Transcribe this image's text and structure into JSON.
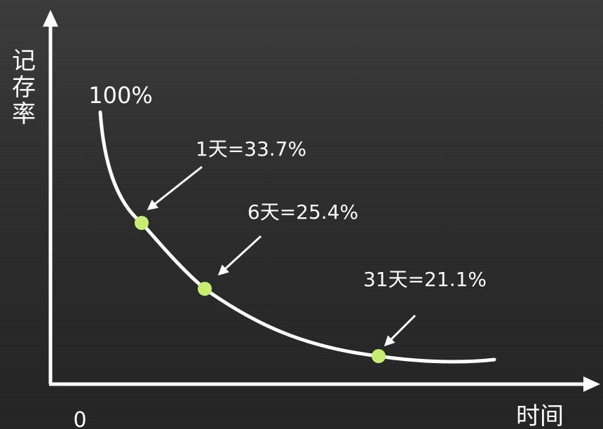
{
  "chart_data": {
    "type": "line",
    "ylabel": "记存率",
    "xlabel": "时间",
    "x_origin_label": "0",
    "start_label": "100%",
    "points": [
      {
        "label": "1天=33.7%",
        "day": 1,
        "value": 33.7
      },
      {
        "label": "6天=25.4%",
        "day": 6,
        "value": 25.4
      },
      {
        "label": "31天=21.1%",
        "day": 31,
        "value": 21.1
      }
    ],
    "colors": {
      "background": "#2e2e2e",
      "axis": "#ffffff",
      "curve": "#ffffff",
      "marker": "#c8ee70",
      "text": "#ffffff"
    }
  }
}
